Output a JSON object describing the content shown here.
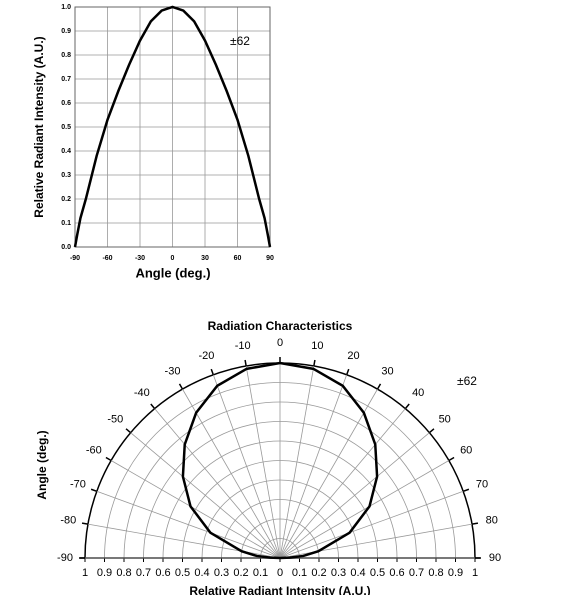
{
  "chart_data": [
    {
      "type": "line",
      "x_label": "Angle (deg.)",
      "y_label": "Relative Radiant Intensity (A.U.)",
      "annotation": "±62",
      "x": [
        -90,
        -88,
        -85,
        -80,
        -70,
        -60,
        -50,
        -40,
        -30,
        -20,
        -10,
        0,
        10,
        20,
        30,
        40,
        50,
        60,
        70,
        80,
        85,
        88,
        90
      ],
      "series": [
        {
          "color": "#000000",
          "values": [
            0,
            0.05,
            0.12,
            0.2,
            0.38,
            0.53,
            0.65,
            0.76,
            0.86,
            0.94,
            0.985,
            1,
            0.985,
            0.94,
            0.86,
            0.76,
            0.65,
            0.53,
            0.38,
            0.2,
            0.12,
            0.05,
            0
          ]
        }
      ],
      "xlim": [
        -90,
        90
      ],
      "xticks": [
        -90,
        -60,
        -30,
        0,
        30,
        60,
        90
      ],
      "ylim": [
        0,
        1
      ],
      "yticks": [
        {
          "value": 0,
          "label": "0.0"
        },
        0.1,
        0.2,
        0.3,
        0.4,
        0.5,
        0.6,
        0.7,
        0.8,
        0.9,
        {
          "value": 1,
          "label": "1.0"
        }
      ],
      "grid": true
    },
    {
      "type": "polar",
      "title": "Radiation Characteristics",
      "x_label": "Relative Radiant Intensity (A.U.)",
      "y_label": "Angle (deg.)",
      "annotation": "±62",
      "theta": [
        -90,
        -88,
        -85,
        -80,
        -70,
        -60,
        -50,
        -40,
        -30,
        -20,
        -10,
        0,
        10,
        20,
        30,
        40,
        50,
        60,
        70,
        80,
        85,
        88,
        90
      ],
      "series": [
        {
          "color": "#000000",
          "values": [
            0,
            0.05,
            0.12,
            0.2,
            0.38,
            0.53,
            0.65,
            0.76,
            0.86,
            0.94,
            0.985,
            1,
            0.985,
            0.94,
            0.86,
            0.76,
            0.65,
            0.53,
            0.38,
            0.2,
            0.12,
            0.05,
            0
          ]
        }
      ],
      "rlim": [
        0,
        1
      ],
      "rticks": [
        0,
        0.1,
        0.2,
        0.3,
        0.4,
        0.5,
        0.6,
        0.7,
        0.8,
        0.9,
        1
      ],
      "thetaticks": [
        -90,
        -80,
        -70,
        -60,
        -50,
        -40,
        -30,
        -20,
        -10,
        0,
        10,
        20,
        30,
        40,
        50,
        60,
        70,
        80,
        90
      ],
      "grid": true
    }
  ]
}
